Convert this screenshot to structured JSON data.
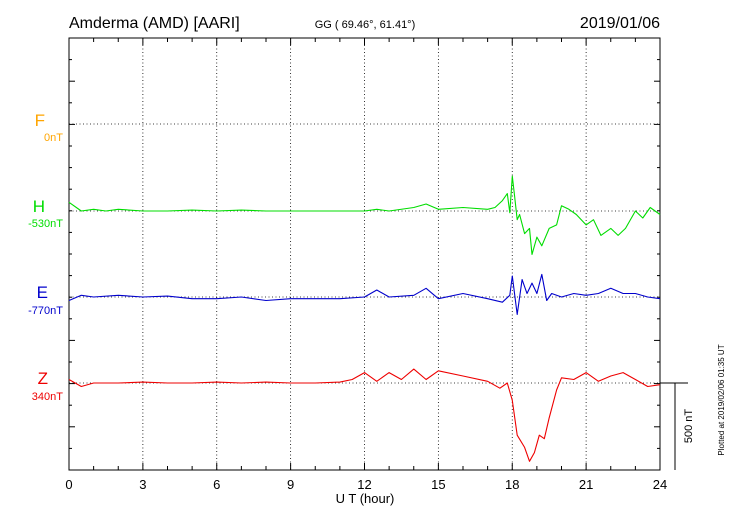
{
  "header": {
    "station": "Amderma (AMD)  [AARI]",
    "coords": "GG ( 69.46°,  61.41°)",
    "date": "2019/01/06"
  },
  "side_note": "Plotted at 2019/02/06 01:35 UT",
  "colors": {
    "F": "#ffa500",
    "H": "#00dd00",
    "E": "#0000cc",
    "Z": "#ee0000",
    "axis": "#000000"
  },
  "chart_data": {
    "type": "line",
    "xlabel": "U T (hour)",
    "xlim": [
      0,
      24
    ],
    "xticks": [
      "0",
      "3",
      "6",
      "9",
      "12",
      "15",
      "18",
      "21",
      "24"
    ],
    "scale_bar": {
      "label": "500 nT",
      "nT": 500
    },
    "channels": [
      {
        "name": "F",
        "baseline": "0nT",
        "color": "#ffa500",
        "x": [],
        "y": []
      },
      {
        "name": "H",
        "baseline": "-530nT",
        "color": "#00dd00",
        "x": [
          0,
          0.5,
          1,
          1.5,
          2,
          3,
          4,
          5,
          6,
          7,
          8,
          9,
          10,
          11,
          12,
          12.5,
          13,
          14,
          14.5,
          15,
          16,
          17,
          17.3,
          17.6,
          17.8,
          17.9,
          18,
          18.1,
          18.2,
          18.3,
          18.5,
          18.7,
          18.8,
          19,
          19.2,
          19.5,
          19.8,
          20,
          20.3,
          20.6,
          21,
          21.3,
          21.6,
          22,
          22.3,
          22.6,
          23,
          23.3,
          23.6,
          24
        ],
        "y": [
          50,
          0,
          10,
          0,
          10,
          0,
          0,
          5,
          0,
          5,
          0,
          0,
          0,
          0,
          0,
          10,
          0,
          20,
          40,
          10,
          20,
          10,
          20,
          60,
          100,
          -10,
          200,
          80,
          -50,
          -20,
          -130,
          -100,
          -250,
          -150,
          -200,
          -100,
          -80,
          30,
          10,
          -20,
          -80,
          -50,
          -140,
          -100,
          -140,
          -100,
          0,
          -40,
          20,
          -20
        ]
      },
      {
        "name": "E",
        "baseline": "-770nT",
        "color": "#0000cc",
        "x": [
          0,
          0.5,
          1,
          2,
          3,
          4,
          5,
          6,
          7,
          8,
          9,
          10,
          11,
          12,
          12.5,
          13,
          14,
          14.5,
          15,
          16,
          17,
          17.6,
          17.9,
          18,
          18.2,
          18.4,
          18.6,
          18.8,
          19,
          19.2,
          19.4,
          19.6,
          20,
          20.5,
          21,
          21.5,
          22,
          22.5,
          23,
          23.5,
          24
        ],
        "y": [
          -20,
          10,
          0,
          10,
          0,
          5,
          -10,
          -10,
          0,
          -20,
          -10,
          -10,
          -10,
          0,
          40,
          0,
          10,
          50,
          -10,
          20,
          -10,
          -30,
          10,
          120,
          -100,
          100,
          20,
          80,
          20,
          130,
          -20,
          20,
          0,
          20,
          10,
          20,
          50,
          20,
          20,
          0,
          -10
        ]
      },
      {
        "name": "Z",
        "baseline": "340nT",
        "color": "#ee0000",
        "x": [
          0,
          0.5,
          1,
          2,
          3,
          4,
          5,
          6,
          7,
          8,
          9,
          10,
          11,
          11.5,
          12,
          12.5,
          13,
          13.5,
          14,
          14.5,
          15,
          16,
          17,
          17.5,
          17.8,
          18,
          18.2,
          18.5,
          18.7,
          18.9,
          19.1,
          19.3,
          19.5,
          19.8,
          20,
          20.5,
          21,
          21.5,
          22,
          22.5,
          23,
          23.5,
          24
        ],
        "y": [
          20,
          -20,
          0,
          0,
          5,
          0,
          0,
          5,
          0,
          5,
          0,
          0,
          5,
          20,
          60,
          10,
          60,
          20,
          80,
          20,
          70,
          40,
          10,
          -30,
          0,
          -100,
          -300,
          -370,
          -450,
          -400,
          -300,
          -320,
          -200,
          -40,
          30,
          20,
          60,
          10,
          40,
          60,
          20,
          -20,
          -10
        ]
      }
    ]
  }
}
